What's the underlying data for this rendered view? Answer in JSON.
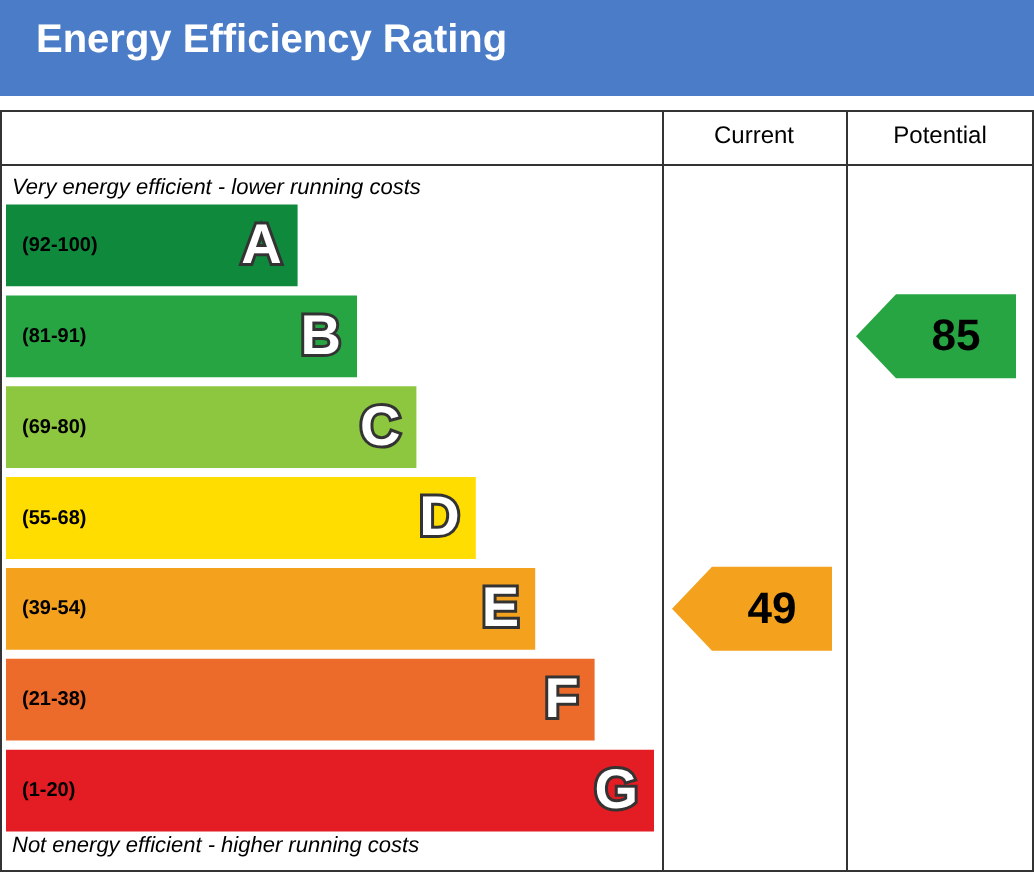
{
  "chart_data": {
    "type": "other",
    "title": "Energy Efficiency Rating",
    "categories": [
      "(92-100)",
      "(81-91)",
      "(69-80)",
      "(55-68)",
      "(39-54)",
      "(21-38)",
      "(1-20)"
    ],
    "colors": [
      "#0f8a3c",
      "#27a543",
      "#8dc63f",
      "#ffdd00",
      "#f4a11e",
      "#ec6a2a",
      "#e31d23"
    ],
    "value_labels": [
      "A",
      "B",
      "C",
      "D",
      "E",
      "F",
      "G"
    ],
    "series": [
      {
        "values": [
          null,
          null,
          null,
          null,
          49,
          null,
          null
        ]
      },
      {
        "values": [
          null,
          85,
          null,
          null,
          null,
          null,
          null
        ]
      }
    ],
    "data_labels": true,
    "annotations": [
      "Very energy efficient - lower running costs",
      "Not energy efficient - higher running costs",
      "Current",
      "Potential"
    ]
  }
}
